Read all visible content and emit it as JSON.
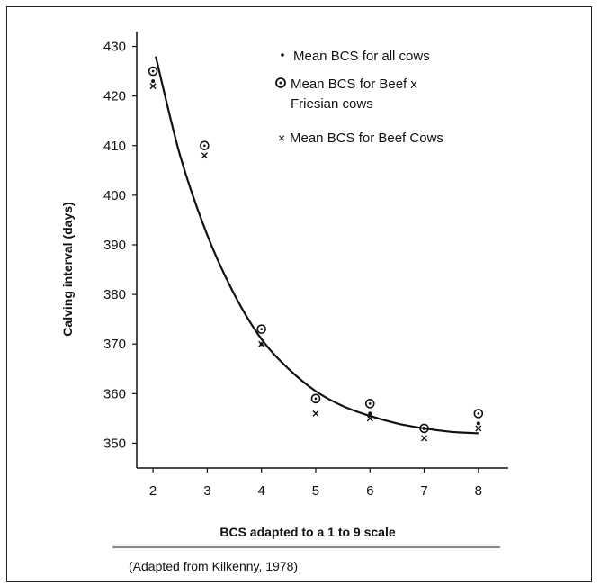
{
  "chart_data": {
    "type": "scatter",
    "title": "",
    "xlabel": "BCS adapted to a 1 to 9 scale",
    "ylabel": "Calving interval (days)",
    "xlim": [
      1.7,
      8.55
    ],
    "ylim": [
      345,
      433
    ],
    "xticks": [
      2,
      3,
      4,
      5,
      6,
      7,
      8
    ],
    "yticks": [
      350,
      360,
      370,
      380,
      390,
      400,
      410,
      420,
      430
    ],
    "grid": false,
    "legend_position": "top-right",
    "series": [
      {
        "name": "Mean BCS for all cows",
        "marker": "dot",
        "x": [
          2,
          4,
          6,
          7,
          8
        ],
        "y": [
          423,
          370,
          356,
          353,
          354
        ]
      },
      {
        "name": "Mean BCS for Beef x Friesian cows",
        "marker": "circle-dot",
        "x": [
          2,
          2.95,
          4,
          5,
          6,
          7,
          8
        ],
        "y": [
          425,
          410,
          373,
          359,
          358,
          353,
          356
        ]
      },
      {
        "name": "Mean BCS for Beef Cows",
        "marker": "x",
        "x": [
          2,
          2.95,
          4,
          5,
          6,
          7,
          8
        ],
        "y": [
          422,
          408,
          370,
          356,
          355,
          351,
          353
        ]
      }
    ],
    "fitted_curve": {
      "x": [
        2.05,
        2.5,
        3,
        3.5,
        4,
        4.5,
        5,
        5.5,
        6,
        6.5,
        7,
        7.5,
        8
      ],
      "y": [
        428,
        408,
        392,
        380,
        371,
        365,
        360.5,
        357.5,
        355.5,
        354,
        353,
        352.3,
        352
      ]
    }
  },
  "legend": {
    "line1": "Mean BCS for all cows",
    "line2a": "Mean BCS for Beef x",
    "line2b": "Friesian cows",
    "line3": "Mean BCS for Beef Cows"
  },
  "source_note": "(Adapted from Kilkenny, 1978)"
}
